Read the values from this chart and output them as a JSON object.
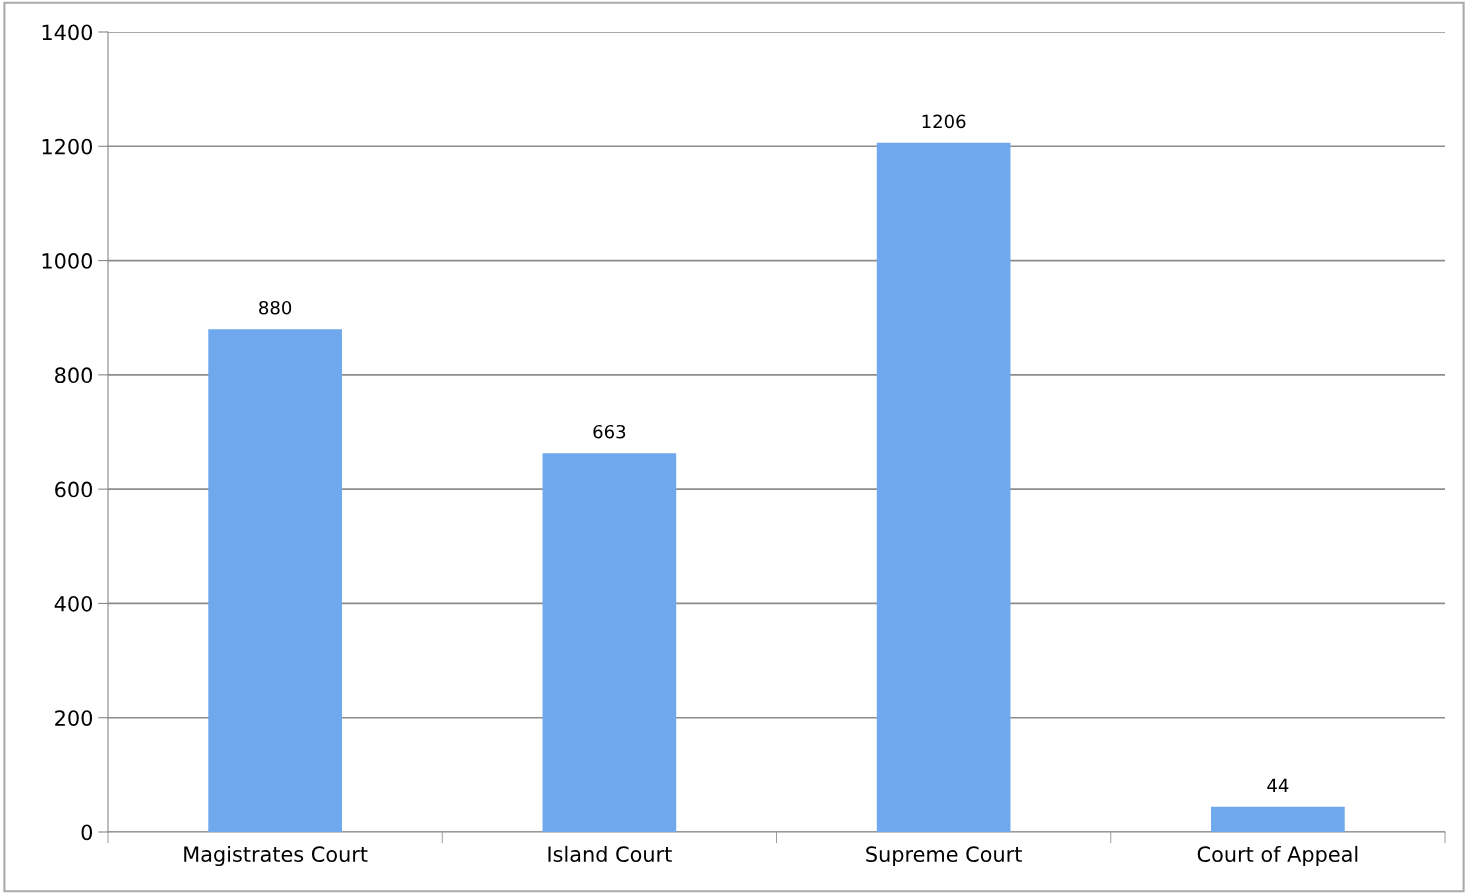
{
  "chart_data": {
    "type": "bar",
    "categories": [
      "Magistrates Court",
      "Island Court",
      "Supreme Court",
      "Court of Appeal"
    ],
    "values": [
      880,
      663,
      1206,
      44
    ],
    "color": "#6fa8ec",
    "ylim": [
      0,
      1400
    ],
    "yticks": [
      0,
      200,
      400,
      600,
      800,
      1000,
      1200,
      1400
    ],
    "grid": "y",
    "data_labels": true,
    "legend": false
  }
}
